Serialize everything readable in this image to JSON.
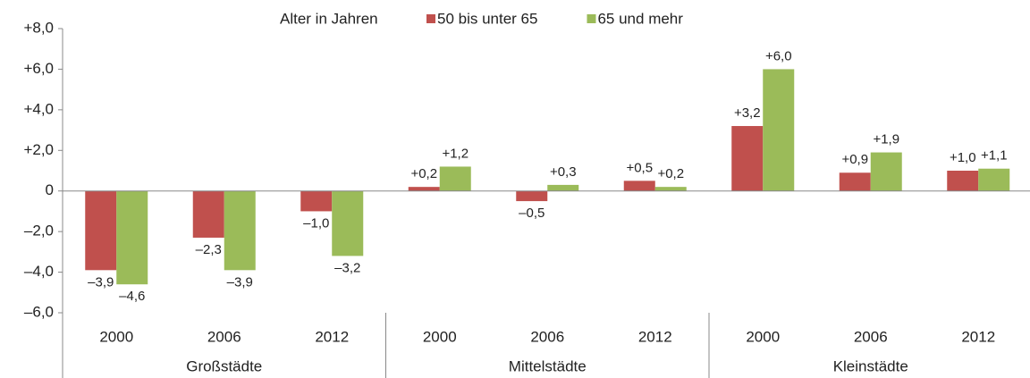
{
  "chart_data": {
    "type": "bar",
    "legend_title": "Alter in Jahren",
    "categories": [
      "2000",
      "2006",
      "2012",
      "2000",
      "2006",
      "2012",
      "2000",
      "2006",
      "2012"
    ],
    "groups": [
      "Großstädte",
      "Mittelstädte",
      "Kleinstädte"
    ],
    "series": [
      {
        "name": "50 bis unter 65",
        "color": "#c0504d",
        "values": [
          -3.9,
          -2.3,
          -1.0,
          0.2,
          -0.5,
          0.5,
          3.2,
          0.9,
          1.0
        ],
        "value_labels": [
          "–3,9",
          "–2,3",
          "–1,0",
          "+0,2",
          "–0,5",
          "+0,5",
          "+3,2",
          "+0,9",
          "+1,0"
        ]
      },
      {
        "name": "65 und mehr",
        "color": "#9bbb59",
        "values": [
          -4.6,
          -3.9,
          -3.2,
          1.2,
          0.3,
          0.2,
          6.0,
          1.9,
          1.1
        ],
        "value_labels": [
          "–4,6",
          "–3,9",
          "–3,2",
          "+1,2",
          "+0,3",
          "+0,2",
          "+6,0",
          "+1,9",
          "+1,1"
        ]
      }
    ],
    "ylim": [
      -6,
      8
    ],
    "yticks": [
      {
        "value": 8,
        "label": "+8,0"
      },
      {
        "value": 6,
        "label": "+6,0"
      },
      {
        "value": 4,
        "label": "+4,0"
      },
      {
        "value": 2,
        "label": "+2,0"
      },
      0,
      {
        "value": -2,
        "label": "–2,0"
      },
      {
        "value": -4,
        "label": "–4,0"
      },
      {
        "value": -6,
        "label": "–6,0"
      }
    ],
    "grid": false
  }
}
